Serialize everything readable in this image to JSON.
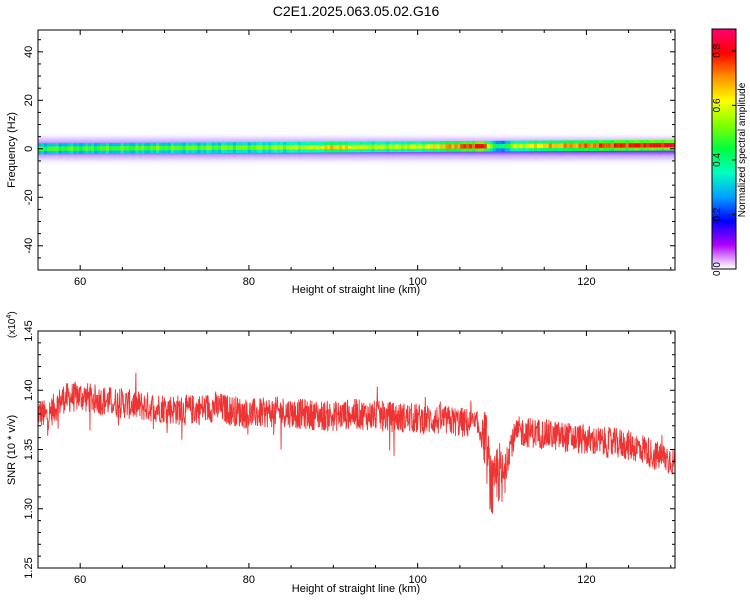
{
  "figure": {
    "title": "C2E1.2025.063.05.02.G16"
  },
  "chart_data": [
    {
      "type": "heatmap",
      "title": "C2E1.2025.063.05.02.G16",
      "xlabel": "Height of straight line (km)",
      "ylabel": "Frequency (Hz)",
      "xlim": [
        55,
        130.5
      ],
      "ylim": [
        -50,
        49
      ],
      "x_ticks": [
        60,
        80,
        100,
        120
      ],
      "y_ticks": [
        -40,
        -20,
        0,
        20,
        40
      ],
      "colorbar": {
        "label": "Normalized spectral amplitude",
        "range": [
          0,
          0.88
        ],
        "ticks": [
          0.0,
          0.2,
          0.4,
          0.6,
          0.8
        ],
        "colormap": [
          "#ffffff",
          "#b000ff",
          "#0000ff",
          "#00c8ff",
          "#00ff80",
          "#60ff00",
          "#ffff00",
          "#ff9000",
          "#ff0000",
          "#ff0060"
        ]
      },
      "band": {
        "center_frequency": 0,
        "half_width": 4,
        "peak_frequency_start": 0,
        "peak_frequency_end": 1.5
      },
      "peak_amplitude_profile": {
        "x": [
          55,
          60,
          70,
          80,
          88,
          90,
          92,
          95,
          100,
          104,
          106,
          107.5,
          108.5,
          109.5,
          111,
          115,
          120,
          125,
          130.5
        ],
        "amplitude": [
          0.48,
          0.48,
          0.5,
          0.52,
          0.58,
          0.68,
          0.6,
          0.56,
          0.58,
          0.7,
          0.76,
          0.82,
          0.55,
          0.35,
          0.55,
          0.66,
          0.72,
          0.78,
          0.82
        ]
      }
    },
    {
      "type": "line",
      "xlabel": "Height of straight line (km)",
      "ylabel": "SNR (10 * v/v)",
      "y_multiplier": "(x10^4)",
      "xlim": [
        55,
        130.5
      ],
      "ylim": [
        12500,
        14500
      ],
      "x_ticks": [
        60,
        80,
        100,
        120
      ],
      "y_ticks": [
        12500,
        13000,
        13500,
        14000,
        14500
      ],
      "y_tick_labels": [
        "1.25",
        "1.30",
        "1.35",
        "1.40",
        "1.45"
      ],
      "series": [
        {
          "color": "#ee3333",
          "x": [
            55,
            56,
            58,
            60,
            62,
            64,
            66,
            68,
            70,
            72,
            74,
            76,
            78,
            80,
            82,
            84,
            86,
            88,
            90,
            92,
            94,
            96,
            98,
            100,
            102,
            104,
            106,
            107,
            108,
            108.5,
            109,
            109.5,
            110,
            111,
            112,
            114,
            116,
            118,
            120,
            122,
            124,
            126,
            127,
            128,
            130,
            130.5
          ],
          "y": [
            13820,
            13780,
            13930,
            13950,
            13920,
            13900,
            13880,
            13860,
            13850,
            13830,
            13840,
            13860,
            13830,
            13800,
            13810,
            13820,
            13800,
            13790,
            13780,
            13800,
            13790,
            13780,
            13770,
            13760,
            13750,
            13740,
            13720,
            13700,
            13600,
            13300,
            13100,
            13350,
            13200,
            13550,
            13650,
            13640,
            13620,
            13600,
            13580,
            13560,
            13550,
            13520,
            13500,
            13450,
            13420,
            13380
          ],
          "noise_amplitude": 130
        }
      ]
    }
  ]
}
